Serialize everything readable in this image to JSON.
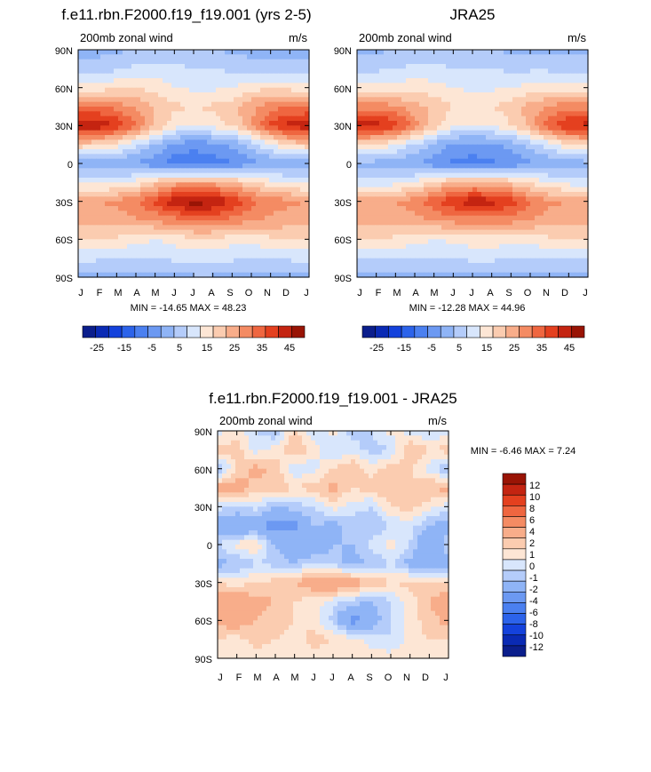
{
  "chart_data": [
    {
      "type": "heatmap",
      "id": "model",
      "title": "f.e11.rbn.F2000.f19_f19.001 (yrs 2-5)",
      "left_label": "200mb zonal wind",
      "right_label": "m/s",
      "x_tick_labels": [
        "J",
        "F",
        "M",
        "A",
        "M",
        "J",
        "J",
        "A",
        "S",
        "O",
        "N",
        "D",
        "J"
      ],
      "y_tick_labels": [
        "90N",
        "60N",
        "30N",
        "0",
        "30S",
        "60S",
        "90S"
      ],
      "y_range": [
        90,
        -90
      ],
      "stats": "MIN = -14.65 MAX =  48.23",
      "field": {
        "latitudes": [
          90,
          75,
          60,
          45,
          30,
          15,
          0,
          -15,
          -30,
          -45,
          -60,
          -75,
          -90
        ],
        "months": [
          "J",
          "F",
          "M",
          "A",
          "M",
          "J",
          "J",
          "A",
          "S",
          "O",
          "N",
          "D",
          "J"
        ],
        "values": [
          [
            -2,
            -2,
            -1,
            0,
            1,
            2,
            1,
            0,
            -1,
            -2,
            -2,
            -2,
            -2
          ],
          [
            3,
            3,
            4,
            6,
            7,
            6,
            5,
            5,
            4,
            3,
            3,
            3,
            3
          ],
          [
            12,
            12,
            14,
            15,
            13,
            10,
            9,
            9,
            10,
            13,
            14,
            13,
            12
          ],
          [
            30,
            30,
            28,
            24,
            20,
            16,
            15,
            16,
            18,
            24,
            28,
            30,
            30
          ],
          [
            44,
            44,
            40,
            30,
            20,
            12,
            10,
            12,
            16,
            24,
            36,
            42,
            44
          ],
          [
            18,
            16,
            12,
            6,
            0,
            -6,
            -8,
            -7,
            -4,
            2,
            10,
            16,
            18
          ],
          [
            -3,
            -3,
            -4,
            -6,
            -9,
            -13,
            -14,
            -13,
            -10,
            -7,
            -5,
            -4,
            -3
          ],
          [
            8,
            8,
            9,
            12,
            18,
            22,
            24,
            23,
            20,
            16,
            12,
            10,
            8
          ],
          [
            25,
            25,
            26,
            30,
            36,
            44,
            48,
            46,
            40,
            32,
            28,
            26,
            25
          ],
          [
            22,
            22,
            22,
            24,
            26,
            28,
            30,
            30,
            28,
            26,
            24,
            22,
            22
          ],
          [
            16,
            16,
            14,
            12,
            10,
            12,
            14,
            14,
            12,
            12,
            14,
            16,
            16
          ],
          [
            6,
            6,
            5,
            5,
            5,
            6,
            7,
            7,
            6,
            5,
            5,
            6,
            6
          ],
          [
            -2,
            -2,
            -1,
            -1,
            -1,
            -1,
            -1,
            -1,
            -1,
            -1,
            -1,
            -2,
            -2
          ]
        ]
      },
      "colorbar": {
        "orientation": "horizontal",
        "levels": [
          -30,
          -25,
          -20,
          -15,
          -10,
          -5,
          0,
          5,
          10,
          15,
          20,
          25,
          30,
          35,
          40,
          45,
          50
        ],
        "tick_labels": [
          "-25",
          "-15",
          "-5",
          "5",
          "15",
          "25",
          "35",
          "45"
        ]
      }
    },
    {
      "type": "heatmap",
      "id": "obs",
      "title": "JRA25",
      "left_label": "200mb zonal wind",
      "right_label": "m/s",
      "x_tick_labels": [
        "J",
        "F",
        "M",
        "A",
        "M",
        "J",
        "J",
        "A",
        "S",
        "O",
        "N",
        "D",
        "J"
      ],
      "y_tick_labels": [
        "90N",
        "60N",
        "30N",
        "0",
        "30S",
        "60S",
        "90S"
      ],
      "y_range": [
        90,
        -90
      ],
      "stats": "MIN = -12.28 MAX =  44.96",
      "field": {
        "latitudes": [
          90,
          75,
          60,
          45,
          30,
          15,
          0,
          -15,
          -30,
          -45,
          -60,
          -75,
          -90
        ],
        "months": [
          "J",
          "F",
          "M",
          "A",
          "M",
          "J",
          "J",
          "A",
          "S",
          "O",
          "N",
          "D",
          "J"
        ],
        "values": [
          [
            -1,
            -1,
            0,
            1,
            2,
            2,
            1,
            0,
            -1,
            -1,
            -1,
            -1,
            -1
          ],
          [
            4,
            4,
            5,
            6,
            6,
            5,
            5,
            5,
            4,
            4,
            4,
            4,
            4
          ],
          [
            11,
            11,
            12,
            13,
            12,
            10,
            9,
            9,
            10,
            12,
            12,
            11,
            11
          ],
          [
            28,
            28,
            26,
            22,
            18,
            15,
            14,
            15,
            17,
            22,
            26,
            28,
            28
          ],
          [
            42,
            42,
            38,
            28,
            18,
            11,
            10,
            11,
            15,
            22,
            34,
            40,
            42
          ],
          [
            16,
            14,
            10,
            4,
            -1,
            -6,
            -7,
            -6,
            -3,
            2,
            8,
            14,
            16
          ],
          [
            -2,
            -2,
            -3,
            -5,
            -8,
            -11,
            -12,
            -11,
            -9,
            -6,
            -4,
            -3,
            -2
          ],
          [
            7,
            7,
            8,
            11,
            16,
            20,
            22,
            21,
            18,
            14,
            10,
            8,
            7
          ],
          [
            24,
            24,
            25,
            28,
            34,
            40,
            44,
            42,
            38,
            30,
            26,
            25,
            24
          ],
          [
            21,
            21,
            21,
            23,
            25,
            27,
            28,
            28,
            27,
            25,
            23,
            21,
            21
          ],
          [
            16,
            16,
            14,
            12,
            10,
            11,
            13,
            13,
            12,
            12,
            14,
            16,
            16
          ],
          [
            5,
            5,
            5,
            5,
            5,
            5,
            6,
            6,
            5,
            5,
            5,
            5,
            5
          ],
          [
            -2,
            -2,
            -1,
            -1,
            -1,
            -1,
            -1,
            -1,
            -1,
            -1,
            -1,
            -2,
            -2
          ]
        ]
      },
      "colorbar": {
        "orientation": "horizontal",
        "levels": [
          -30,
          -25,
          -20,
          -15,
          -10,
          -5,
          0,
          5,
          10,
          15,
          20,
          25,
          30,
          35,
          40,
          45,
          50
        ],
        "tick_labels": [
          "-25",
          "-15",
          "-5",
          "5",
          "15",
          "25",
          "35",
          "45"
        ]
      }
    },
    {
      "type": "heatmap",
      "id": "diff",
      "title": "f.e11.rbn.F2000.f19_f19.001 - JRA25",
      "left_label": "200mb zonal wind",
      "right_label": "m/s",
      "x_tick_labels": [
        "J",
        "F",
        "M",
        "A",
        "M",
        "J",
        "J",
        "A",
        "S",
        "O",
        "N",
        "D",
        "J"
      ],
      "y_tick_labels": [
        "90N",
        "60N",
        "30N",
        "0",
        "30S",
        "60S",
        "90S"
      ],
      "y_range": [
        90,
        -90
      ],
      "stats": "MIN =  -6.46 MAX =   7.24",
      "field": {
        "latitudes": [
          90,
          75,
          60,
          45,
          30,
          15,
          0,
          -15,
          -30,
          -45,
          -60,
          -75,
          -90
        ],
        "months": [
          "J",
          "F",
          "M",
          "A",
          "M",
          "J",
          "J",
          "A",
          "S",
          "O",
          "N",
          "D",
          "J"
        ],
        "values": [
          [
            -0.5,
            0.5,
            -1,
            -2,
            1.5,
            -1,
            0.5,
            -1.5,
            -1,
            0.5,
            -0.5,
            -1,
            -0.5
          ],
          [
            1.5,
            1.5,
            -0.5,
            0.5,
            2,
            0.5,
            -1,
            -0.5,
            -1.5,
            -1,
            2,
            1,
            1.5
          ],
          [
            -2,
            1,
            2.5,
            1.5,
            -1,
            -0.5,
            1,
            2,
            0.5,
            1.5,
            1,
            -0.5,
            -2
          ],
          [
            2.5,
            3,
            1.5,
            2,
            1,
            1.5,
            2.5,
            1,
            1.5,
            2,
            1.5,
            2,
            2.5
          ],
          [
            -0.5,
            -1,
            -0.5,
            -2,
            -1.5,
            -1,
            0.5,
            -0.5,
            -1,
            1,
            1.5,
            0.5,
            -0.5
          ],
          [
            -3,
            -4,
            -3.5,
            -5,
            -4.5,
            -2,
            -2.5,
            -1.5,
            -2,
            -1,
            -0.5,
            -2,
            -3
          ],
          [
            -1,
            0.5,
            1,
            -2,
            -3,
            -3.5,
            -2,
            -2,
            -0.5,
            0.5,
            -1,
            -4,
            -1
          ],
          [
            -2.5,
            -2,
            -1,
            -1.5,
            -2,
            -1,
            -1.5,
            -2.5,
            -2,
            -1,
            -2.5,
            -3,
            -2.5
          ],
          [
            1,
            0.5,
            1,
            1.5,
            2,
            3,
            4,
            3,
            2,
            1,
            1.5,
            1,
            1
          ],
          [
            3,
            3,
            2.5,
            2,
            1,
            0.5,
            -0.5,
            -1.5,
            -2,
            -1,
            0.5,
            2,
            3
          ],
          [
            2.5,
            3,
            2,
            1.5,
            1,
            0.5,
            -1.5,
            -5,
            -3,
            -1,
            0.5,
            1.5,
            2.5
          ],
          [
            1,
            0.5,
            1.5,
            1,
            0.5,
            1.5,
            1,
            0.5,
            -0.5,
            -1,
            0.5,
            1,
            1
          ],
          [
            0.5,
            0.5,
            0.5,
            0.5,
            0.5,
            0.5,
            0.5,
            0.5,
            0.5,
            0.5,
            0.5,
            0.5,
            0.5
          ]
        ]
      },
      "colorbar": {
        "orientation": "vertical",
        "levels": [
          -14,
          -12,
          -10,
          -8,
          -6,
          -4,
          -2,
          -1,
          0,
          1,
          2,
          4,
          6,
          8,
          10,
          12,
          14
        ],
        "tick_labels": [
          "12",
          "10",
          "8",
          "6",
          "4",
          "2",
          "1",
          "0",
          "-1",
          "-2",
          "-4",
          "-6",
          "-8",
          "-10",
          "-12"
        ]
      }
    }
  ],
  "colors": {
    "scale": [
      "#0b1e8c",
      "#0a2ab4",
      "#1442dc",
      "#2c63ea",
      "#4b80f0",
      "#6c99f2",
      "#8fb4f6",
      "#b4ccfa",
      "#d8e6fc",
      "#fde6d5",
      "#fbccb0",
      "#f8ad8a",
      "#f48b63",
      "#ef6640",
      "#e4401f",
      "#c42411",
      "#991405"
    ],
    "frame": "#000000",
    "background": "#ffffff"
  }
}
